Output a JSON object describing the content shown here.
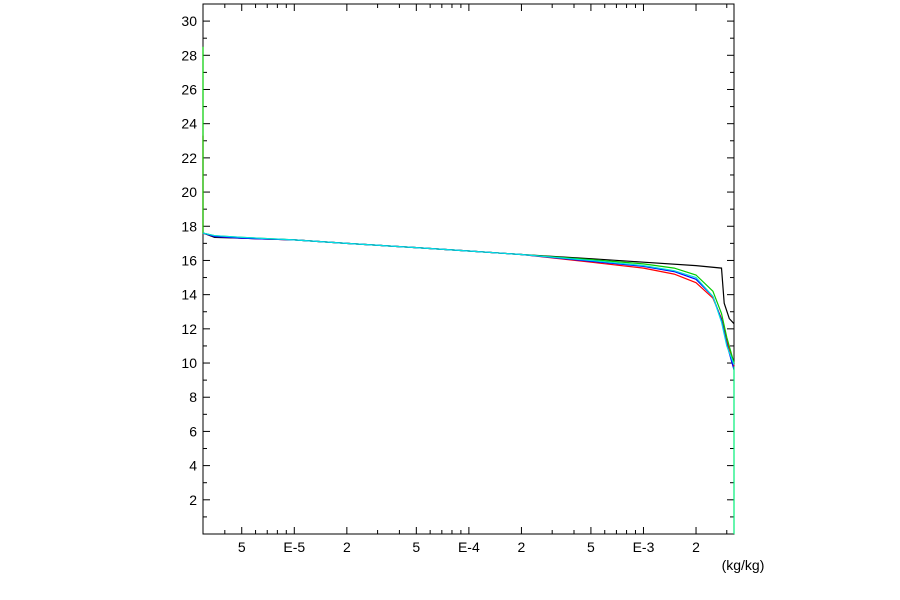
{
  "chart_data": {
    "type": "line",
    "title": "",
    "xlabel": "(kg/kg)",
    "ylabel": "",
    "x_scale": "log",
    "xlim": [
      3e-06,
      0.0033
    ],
    "ylim": [
      0,
      31
    ],
    "grid": false,
    "y_ticks": [
      {
        "value": 2,
        "label": "2"
      },
      {
        "value": 4,
        "label": "4"
      },
      {
        "value": 6,
        "label": "6"
      },
      {
        "value": 8,
        "label": "8"
      },
      {
        "value": 10,
        "label": "10"
      },
      {
        "value": 12,
        "label": "12"
      },
      {
        "value": 14,
        "label": "14"
      },
      {
        "value": 16,
        "label": "16"
      },
      {
        "value": 18,
        "label": "18"
      },
      {
        "value": 20,
        "label": "20"
      },
      {
        "value": 22,
        "label": "22"
      },
      {
        "value": 24,
        "label": "24"
      },
      {
        "value": 26,
        "label": "26"
      },
      {
        "value": 28,
        "label": "28"
      },
      {
        "value": 30,
        "label": "30"
      }
    ],
    "x_ticks": [
      {
        "value": 5e-06,
        "label": "5"
      },
      {
        "value": 1e-05,
        "label": "E-5"
      },
      {
        "value": 2e-05,
        "label": "2"
      },
      {
        "value": 5e-05,
        "label": "5"
      },
      {
        "value": 0.0001,
        "label": "E-4"
      },
      {
        "value": 0.0002,
        "label": "2"
      },
      {
        "value": 0.0005,
        "label": "5"
      },
      {
        "value": 0.001,
        "label": "E-3"
      },
      {
        "value": 0.002,
        "label": "2"
      }
    ],
    "series": [
      {
        "color": "#000000",
        "points": [
          [
            3e-06,
            17.6
          ],
          [
            3.5e-06,
            17.35
          ],
          [
            5e-06,
            17.3
          ],
          [
            1e-05,
            17.2
          ],
          [
            2e-05,
            17.0
          ],
          [
            5e-05,
            16.75
          ],
          [
            0.0001,
            16.55
          ],
          [
            0.0002,
            16.35
          ],
          [
            0.0005,
            16.1
          ],
          [
            0.001,
            15.9
          ],
          [
            0.002,
            15.7
          ],
          [
            0.0028,
            15.55
          ],
          [
            0.0029,
            13.5
          ],
          [
            0.0031,
            12.6
          ],
          [
            0.0033,
            12.3
          ]
        ]
      },
      {
        "color": "#ff0000",
        "points": [
          [
            3e-06,
            22.4
          ],
          [
            3e-06,
            23.3
          ],
          [
            3e-06,
            17.6
          ],
          [
            3.5e-06,
            17.4
          ],
          [
            5e-06,
            17.3
          ],
          [
            1e-05,
            17.2
          ],
          [
            2e-05,
            17.0
          ],
          [
            5e-05,
            16.75
          ],
          [
            0.0001,
            16.55
          ],
          [
            0.0002,
            16.35
          ],
          [
            0.0005,
            15.9
          ],
          [
            0.001,
            15.55
          ],
          [
            0.0015,
            15.2
          ],
          [
            0.002,
            14.7
          ],
          [
            0.0025,
            13.8
          ],
          [
            0.0028,
            12.6
          ],
          [
            0.003,
            11.3
          ],
          [
            0.0033,
            9.8
          ]
        ]
      },
      {
        "color": "#00cc00",
        "points": [
          [
            3e-06,
            26.5
          ],
          [
            3e-06,
            28.5
          ],
          [
            3e-06,
            17.6
          ],
          [
            3.5e-06,
            17.45
          ],
          [
            5e-06,
            17.35
          ],
          [
            1e-05,
            17.2
          ],
          [
            2e-05,
            17.0
          ],
          [
            5e-05,
            16.75
          ],
          [
            0.0001,
            16.55
          ],
          [
            0.0002,
            16.35
          ],
          [
            0.0005,
            16.05
          ],
          [
            0.001,
            15.8
          ],
          [
            0.0015,
            15.55
          ],
          [
            0.002,
            15.15
          ],
          [
            0.0025,
            14.2
          ],
          [
            0.0028,
            12.9
          ],
          [
            0.003,
            11.5
          ],
          [
            0.0033,
            10.0
          ]
        ]
      },
      {
        "color": "#0000ff",
        "points": [
          [
            3e-06,
            17.6
          ],
          [
            3.5e-06,
            17.4
          ],
          [
            5e-06,
            17.3
          ],
          [
            1e-05,
            17.2
          ],
          [
            2e-05,
            17.0
          ],
          [
            5e-05,
            16.75
          ],
          [
            0.0001,
            16.55
          ],
          [
            0.0002,
            16.35
          ],
          [
            0.0005,
            15.95
          ],
          [
            0.001,
            15.65
          ],
          [
            0.0015,
            15.35
          ],
          [
            0.002,
            14.9
          ],
          [
            0.0025,
            13.9
          ],
          [
            0.0028,
            12.5
          ],
          [
            0.003,
            11.1
          ],
          [
            0.0033,
            9.6
          ]
        ]
      },
      {
        "color": "#00e0e0",
        "points": [
          [
            3e-06,
            17.6
          ],
          [
            3.5e-06,
            17.45
          ],
          [
            5e-06,
            17.35
          ],
          [
            1e-05,
            17.2
          ],
          [
            2e-05,
            17.0
          ],
          [
            5e-05,
            16.75
          ],
          [
            0.0001,
            16.55
          ],
          [
            0.0002,
            16.35
          ],
          [
            0.0005,
            16.0
          ],
          [
            0.001,
            15.7
          ],
          [
            0.0015,
            15.4
          ],
          [
            0.002,
            15.0
          ],
          [
            0.0025,
            13.9
          ],
          [
            0.0028,
            12.4
          ],
          [
            0.003,
            11.0
          ],
          [
            0.0033,
            9.9
          ]
        ]
      },
      {
        "color": "#00ee77",
        "points": [
          [
            0.0033,
            9.8
          ],
          [
            0.0033,
            0.0
          ]
        ]
      }
    ]
  }
}
